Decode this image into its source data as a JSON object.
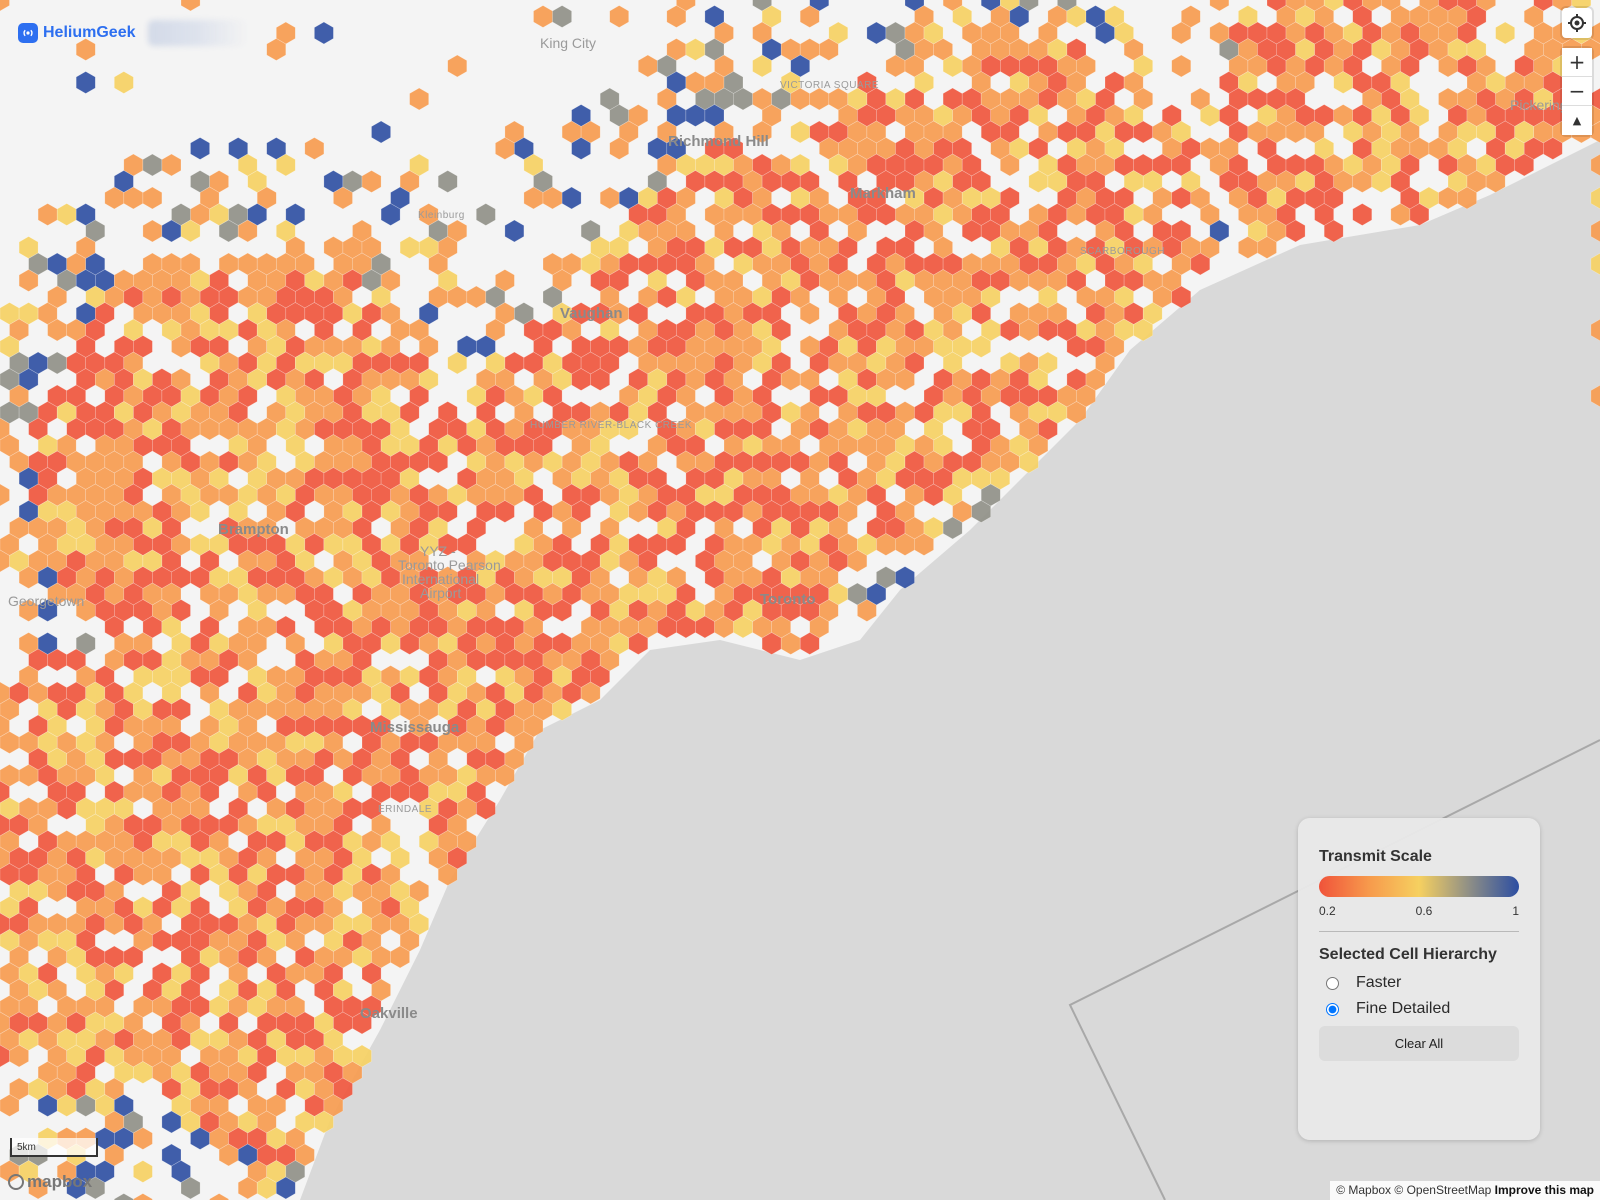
{
  "app": {
    "logo_text": "HeliumGeek",
    "logo_icon": "radio-signal-icon"
  },
  "map": {
    "place_labels": [
      "King City",
      "Richmond Hill",
      "Markham",
      "Vaughan",
      "Kleinburg",
      "Brampton",
      "YYZ -",
      "Toronto Pearson",
      "International",
      "Airport",
      "Toronto",
      "Mississauga",
      "Oakville",
      "Georgetown",
      "ERINDALE",
      "HUMBER RIVER-BLACK CREEK",
      "SCARBOROUGH",
      "VICTORIA SQUARE",
      "Pickering"
    ],
    "colors": {
      "water": "#d9d9d9",
      "land": "#f4f4f4",
      "hex_stroke": "#e05a3a"
    }
  },
  "controls": {
    "locate_icon": "locate-crosshair-icon",
    "zoom_in": "+",
    "zoom_out": "−",
    "compass": "▲"
  },
  "legend": {
    "title": "Transmit Scale",
    "scale_min": "0.2",
    "scale_mid": "0.6",
    "scale_max": "1",
    "scale_colors": [
      "#f0533a",
      "#f79a4c",
      "#f6d060",
      "#8f8f86",
      "#2c4ea2"
    ],
    "hierarchy_title": "Selected Cell Hierarchy",
    "options": [
      {
        "label": "Faster",
        "checked": false
      },
      {
        "label": "Fine Detailed",
        "checked": true
      }
    ],
    "clear_label": "Clear All"
  },
  "footer": {
    "scale_label": "5km",
    "mapbox_label": "mapbox",
    "attribution_mapbox": "© Mapbox",
    "attribution_osm": "© OpenStreetMap",
    "attribution_improve": "Improve this map"
  }
}
